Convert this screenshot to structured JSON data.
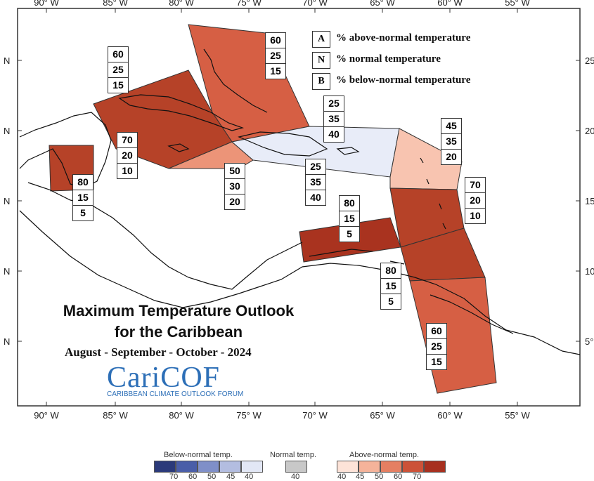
{
  "map": {
    "lon_labels": [
      "90° W",
      "85° W",
      "80° W",
      "75° W",
      "70° W",
      "65° W",
      "60° W",
      "55° W"
    ],
    "lat_labels_left": [
      "N",
      "N",
      "N",
      "N",
      "N"
    ],
    "lat_labels_right": [
      "25°",
      "20°",
      "15°",
      "10°",
      "5°"
    ]
  },
  "key": {
    "rows": [
      {
        "letter": "A",
        "text": "% above-normal temperature"
      },
      {
        "letter": "N",
        "text": "% normal temperature"
      },
      {
        "letter": "B",
        "text": "% below-normal temperature"
      }
    ]
  },
  "title": {
    "line1": "Maximum Temperature Outlook",
    "line2": "for the Caribbean",
    "season": "August - September - October - 2024"
  },
  "logo": {
    "name": "CariCOF",
    "subtitle": "CARIBBEAN CLIMATE OUTLOOK FORUM"
  },
  "boxes": [
    {
      "id": "bahamas",
      "A": "60",
      "N": "25",
      "B": "15"
    },
    {
      "id": "cuba-n",
      "A": "60",
      "N": "25",
      "B": "15"
    },
    {
      "id": "cuba-s",
      "A": "70",
      "N": "20",
      "B": "10"
    },
    {
      "id": "jamaica",
      "A": "50",
      "N": "30",
      "B": "20"
    },
    {
      "id": "belize",
      "A": "80",
      "N": "15",
      "B": "5"
    },
    {
      "id": "hispaniola-n",
      "A": "25",
      "N": "35",
      "B": "40"
    },
    {
      "id": "hispaniola-s",
      "A": "25",
      "N": "35",
      "B": "40"
    },
    {
      "id": "leeward",
      "A": "45",
      "N": "35",
      "B": "20"
    },
    {
      "id": "windward",
      "A": "70",
      "N": "20",
      "B": "10"
    },
    {
      "id": "abc",
      "A": "80",
      "N": "15",
      "B": "5"
    },
    {
      "id": "trinidad",
      "A": "80",
      "N": "15",
      "B": "5"
    },
    {
      "id": "guianas",
      "A": "60",
      "N": "25",
      "B": "15"
    }
  ],
  "legend": {
    "below_label": "Below-normal temp.",
    "normal_label": "Normal temp.",
    "above_label": "Above-normal temp.",
    "below_ticks": [
      "70",
      "60",
      "50",
      "45",
      "40"
    ],
    "normal_ticks": [
      "40"
    ],
    "above_ticks": [
      "40",
      "45",
      "50",
      "60",
      "70"
    ],
    "below_colors": [
      "#2b3a7a",
      "#4a5ea8",
      "#7f8fc8",
      "#b3bde0",
      "#e2e7f5"
    ],
    "normal_color": "#c8c8c8",
    "above_colors": [
      "#fde3d8",
      "#f5b39a",
      "#e57f62",
      "#cc5238",
      "#a7301f"
    ]
  }
}
